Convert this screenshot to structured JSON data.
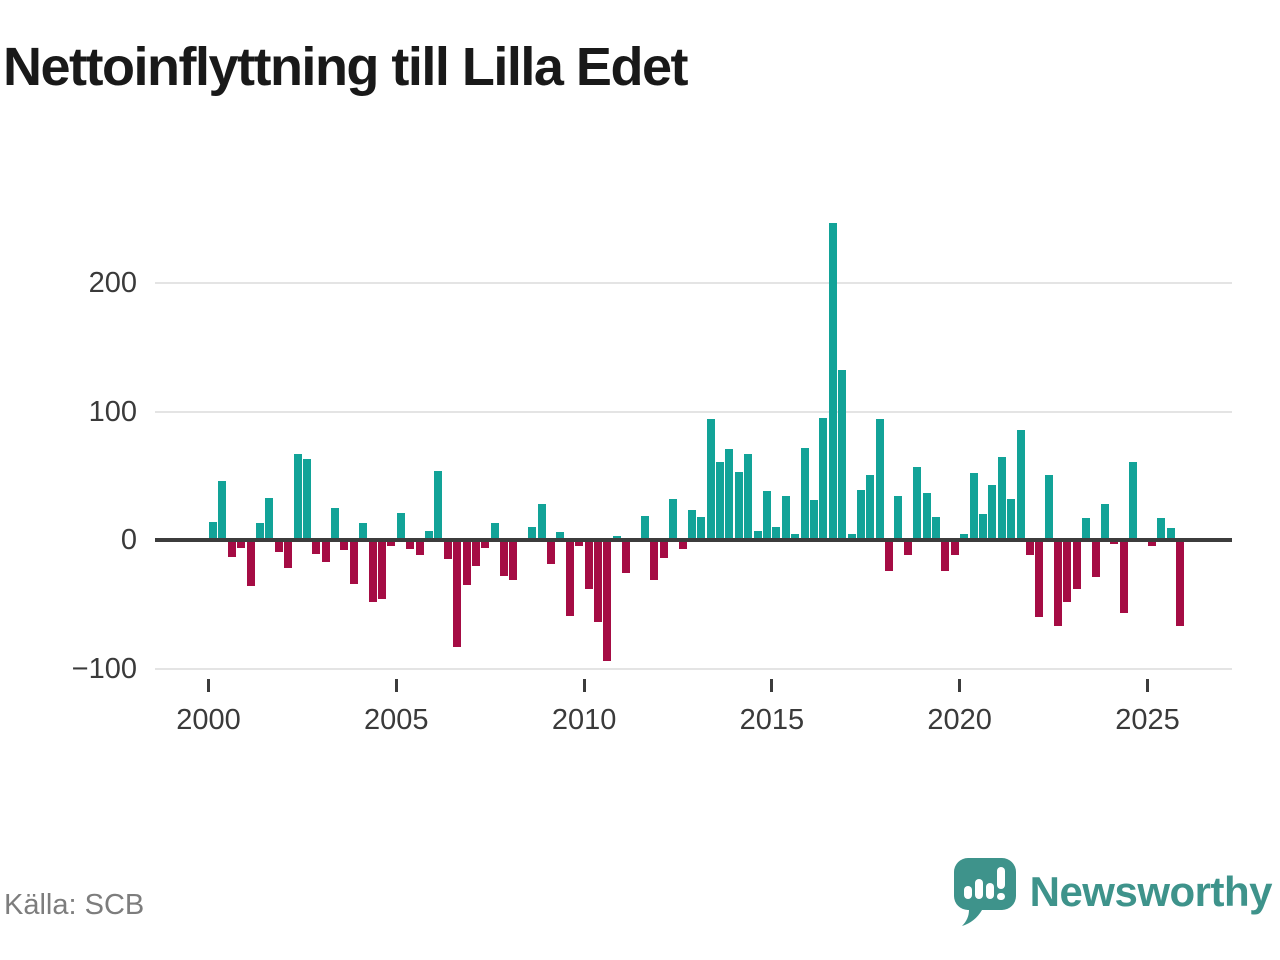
{
  "title": "Nettoinflyttning till Lilla Edet",
  "source": "Källa: SCB",
  "branding": {
    "name": "Newsworthy"
  },
  "colors": {
    "positive": "#12a398",
    "negative": "#a50c44",
    "grid": "#e4e4e4",
    "axis": "#3c3c3c",
    "brand": "#3e938b",
    "text": "#3a3a3a",
    "source_text": "#7d7d7d"
  },
  "chart_data": {
    "type": "bar",
    "title": "Nettoinflyttning till Lilla Edet",
    "xlabel": "",
    "ylabel": "",
    "frequency": "quarterly",
    "x_axis": {
      "start": "2000-Q1",
      "end": "2025-Q4"
    },
    "x_tick_labels": [
      "2000",
      "2005",
      "2010",
      "2015",
      "2020",
      "2025"
    ],
    "y_ticks": [
      200,
      100,
      0,
      -100
    ],
    "y_tick_labels": [
      "200",
      "100",
      "0",
      "−100"
    ],
    "ylim": [
      -115,
      265
    ],
    "grid": true,
    "legend": "none",
    "values": [
      14,
      46,
      -13,
      -6,
      -36,
      13,
      33,
      -9,
      -22,
      67,
      63,
      -11,
      -17,
      25,
      -8,
      -34,
      13,
      -48,
      -46,
      -5,
      21,
      -7,
      -12,
      7,
      54,
      -15,
      -83,
      -35,
      -20,
      -6,
      13,
      -28,
      -31,
      0,
      10,
      28,
      -19,
      6,
      -59,
      -5,
      -38,
      -64,
      -94,
      3,
      -26,
      0,
      19,
      -31,
      -14,
      32,
      -7,
      23,
      18,
      94,
      61,
      71,
      53,
      67,
      7,
      38,
      10,
      34,
      5,
      72,
      31,
      95,
      247,
      132,
      5,
      39,
      51,
      94,
      -24,
      34,
      -12,
      57,
      37,
      18,
      -24,
      -12,
      5,
      52,
      20,
      43,
      65,
      32,
      86,
      -12,
      -60,
      51,
      -67,
      -48,
      -38,
      17,
      -29,
      28,
      -3,
      -57,
      61,
      0,
      -5,
      17,
      9,
      -67
    ]
  }
}
